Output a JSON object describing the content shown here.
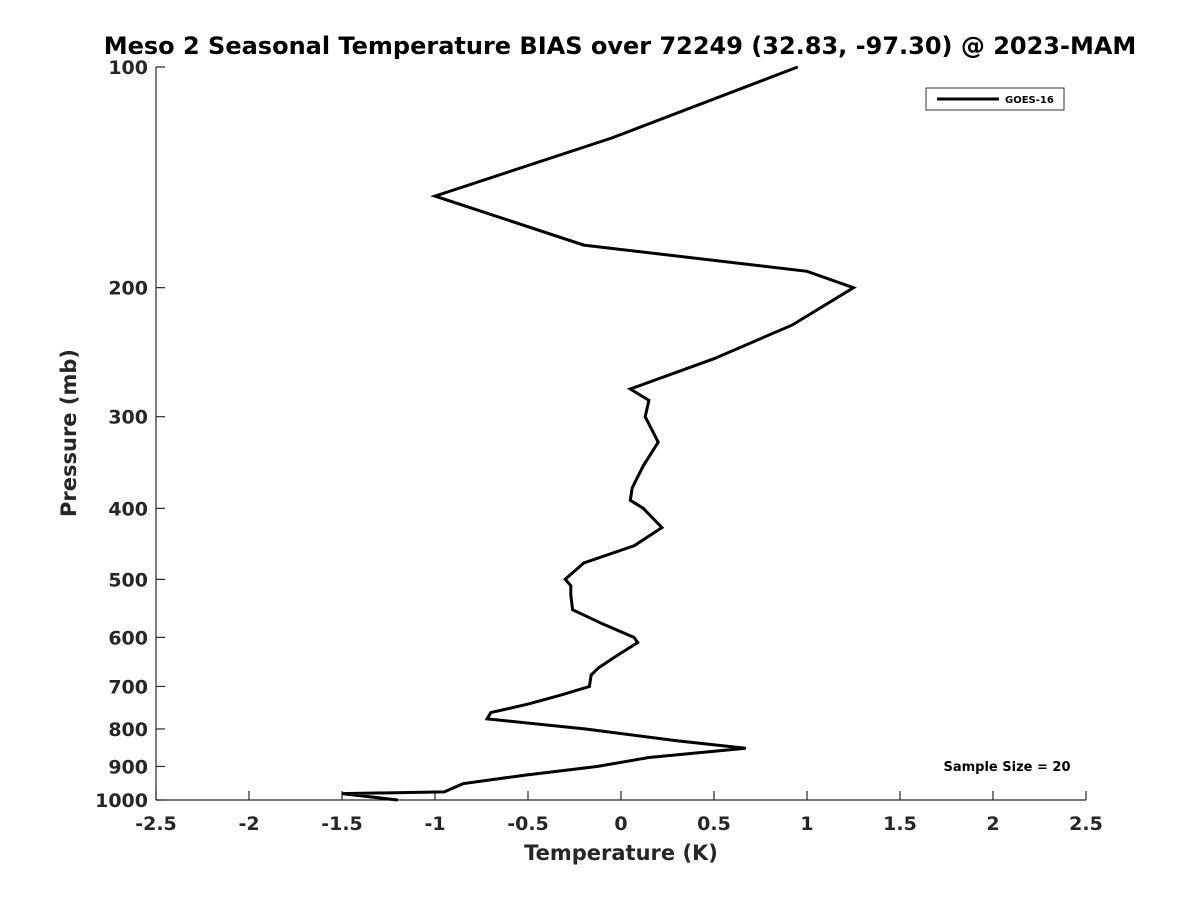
{
  "chart_data": {
    "type": "line",
    "title": "Meso 2 Seasonal Temperature BIAS over 72249 (32.83, -97.30) @ 2023-MAM",
    "xlabel": "Temperature (K)",
    "ylabel": "Pressure (mb)",
    "xlim": [
      -2.5,
      2.5
    ],
    "ylim": [
      100,
      1000
    ],
    "y_scale": "log",
    "y_reversed": true,
    "grid": false,
    "x_ticks": [
      "-2.5",
      "-2",
      "-1.5",
      "-1",
      "-0.5",
      "0",
      "0.5",
      "1",
      "1.5",
      "2",
      "2.5"
    ],
    "y_ticks": [
      "100",
      "200",
      "300",
      "400",
      "500",
      "600",
      "700",
      "800",
      "900",
      "1000"
    ],
    "legend_position": "top-right",
    "annotation": "Sample Size = 20",
    "series": [
      {
        "name": "GOES-16",
        "color": "#000000",
        "points": [
          {
            "x": 0.95,
            "y": 100
          },
          {
            "x": -0.05,
            "y": 125
          },
          {
            "x": -1.0,
            "y": 150
          },
          {
            "x": -0.2,
            "y": 175
          },
          {
            "x": 1.0,
            "y": 190
          },
          {
            "x": 1.25,
            "y": 200
          },
          {
            "x": 0.92,
            "y": 225
          },
          {
            "x": 0.5,
            "y": 250
          },
          {
            "x": 0.05,
            "y": 275
          },
          {
            "x": 0.15,
            "y": 285
          },
          {
            "x": 0.13,
            "y": 300
          },
          {
            "x": 0.2,
            "y": 325
          },
          {
            "x": 0.12,
            "y": 350
          },
          {
            "x": 0.06,
            "y": 375
          },
          {
            "x": 0.05,
            "y": 390
          },
          {
            "x": 0.12,
            "y": 400
          },
          {
            "x": 0.22,
            "y": 425
          },
          {
            "x": 0.07,
            "y": 450
          },
          {
            "x": -0.2,
            "y": 475
          },
          {
            "x": -0.3,
            "y": 500
          },
          {
            "x": -0.27,
            "y": 510
          },
          {
            "x": -0.27,
            "y": 525
          },
          {
            "x": -0.26,
            "y": 550
          },
          {
            "x": -0.1,
            "y": 575
          },
          {
            "x": 0.07,
            "y": 600
          },
          {
            "x": 0.09,
            "y": 610
          },
          {
            "x": -0.02,
            "y": 635
          },
          {
            "x": -0.12,
            "y": 660
          },
          {
            "x": -0.16,
            "y": 675
          },
          {
            "x": -0.17,
            "y": 700
          },
          {
            "x": -0.33,
            "y": 720
          },
          {
            "x": -0.5,
            "y": 740
          },
          {
            "x": -0.7,
            "y": 760
          },
          {
            "x": -0.72,
            "y": 775
          },
          {
            "x": -0.19,
            "y": 800
          },
          {
            "x": 0.3,
            "y": 830
          },
          {
            "x": 0.67,
            "y": 850
          },
          {
            "x": 0.15,
            "y": 875
          },
          {
            "x": -0.13,
            "y": 900
          },
          {
            "x": -0.52,
            "y": 925
          },
          {
            "x": -0.85,
            "y": 950
          },
          {
            "x": -0.95,
            "y": 975
          },
          {
            "x": -1.5,
            "y": 980
          },
          {
            "x": -1.2,
            "y": 1000
          }
        ]
      }
    ]
  }
}
